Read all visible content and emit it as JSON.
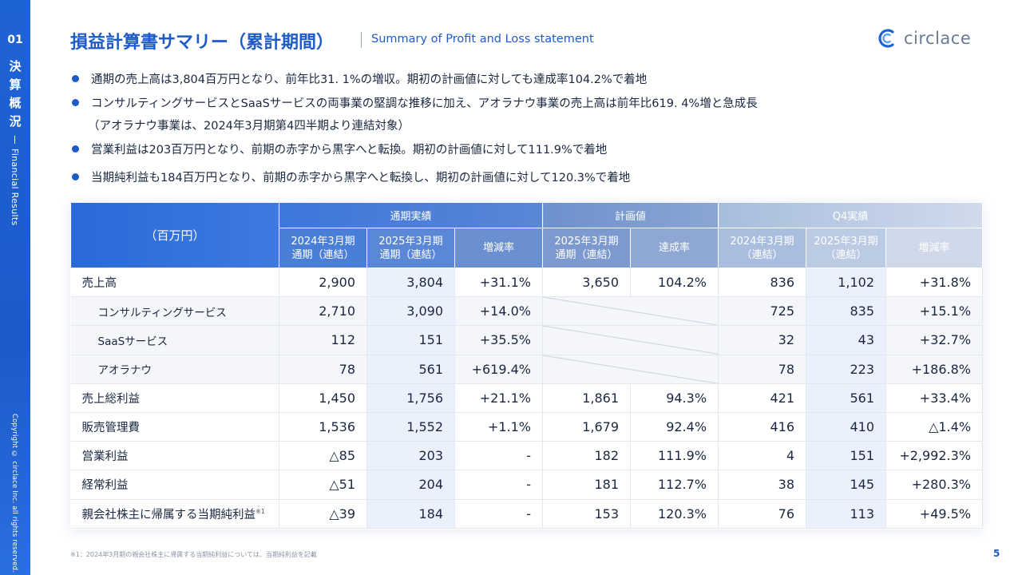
{
  "sidebar": {
    "section_number": "01",
    "section_jp": [
      "決",
      "算",
      "概",
      "況"
    ],
    "section_en": "Financial Results",
    "copyright": "Copyright © circlace Inc. all rights reserved."
  },
  "header": {
    "title": "損益計算書サマリー（累計期間）",
    "subtitle": "Summary of Profit and Loss statement",
    "logo_text": "circlace"
  },
  "bullets": [
    "通期の売上高は3,804百万円となり、前年比31. 1%の増収。期初の計画値に対しても達成率104.2%で着地",
    "コンサルティングサービスとSaaSサービスの両事業の堅調な推移に加え、アオラナウ事業の売上高は前年比619. 4%増と急成長",
    "（アオラナウ事業は、2024年3月期第4四半期より連結対象）",
    "営業利益は203百万円となり、前期の赤字から黒字へと転換。期初の計画値に対して111.9%で着地",
    "当期純利益も184百万円となり、前期の赤字から黒字へと転換し、期初の計画値に対して120.3%で着地"
  ],
  "table": {
    "corner": "（百万円）",
    "groups": [
      "通期実績",
      "計画値",
      "Q4実績"
    ],
    "columns": [
      [
        "2024年3月期",
        "通期（連結）"
      ],
      [
        "2025年3月期",
        "通期（連結）"
      ],
      [
        "増減率"
      ],
      [
        "2025年3月期",
        "通期（連結）"
      ],
      [
        "達成率"
      ],
      [
        "2024年3月期",
        "（連結）"
      ],
      [
        "2025年3月期",
        "（連結）"
      ],
      [
        "増減率"
      ]
    ],
    "rows": [
      {
        "label": "売上高",
        "sup": "",
        "values": [
          "2,900",
          "3,804",
          "+31.1%",
          "3,650",
          "104.2%",
          "836",
          "1,102",
          "+31.8%"
        ]
      },
      {
        "label": "コンサルティングサービス",
        "sup": "",
        "values": [
          "2,710",
          "3,090",
          "+14.0%",
          "",
          "",
          "725",
          "835",
          "+15.1%"
        ]
      },
      {
        "label": "SaaSサービス",
        "sup": "",
        "values": [
          "112",
          "151",
          "+35.5%",
          "",
          "",
          "32",
          "43",
          "+32.7%"
        ]
      },
      {
        "label": "アオラナウ",
        "sup": "",
        "values": [
          "78",
          "561",
          "+619.4%",
          "",
          "",
          "78",
          "223",
          "+186.8%"
        ]
      },
      {
        "label": "売上総利益",
        "sup": "",
        "values": [
          "1,450",
          "1,756",
          "+21.1%",
          "1,861",
          "94.3%",
          "421",
          "561",
          "+33.4%"
        ]
      },
      {
        "label": "販売管理費",
        "sup": "",
        "values": [
          "1,536",
          "1,552",
          "+1.1%",
          "1,679",
          "92.4%",
          "416",
          "410",
          "△1.4%"
        ]
      },
      {
        "label": "営業利益",
        "sup": "",
        "values": [
          "△85",
          "203",
          "-",
          "182",
          "111.9%",
          "4",
          "151",
          "+2,992.3%"
        ]
      },
      {
        "label": "経常利益",
        "sup": "",
        "values": [
          "△51",
          "204",
          "-",
          "181",
          "112.7%",
          "38",
          "145",
          "+280.3%"
        ]
      },
      {
        "label": "親会社株主に帰属する当期純利益",
        "sup": "※1",
        "values": [
          "△39",
          "184",
          "-",
          "153",
          "120.3%",
          "76",
          "113",
          "+49.5%"
        ]
      }
    ]
  },
  "footnote": "※1：2024年3月期の親会社株主に帰属する当期純利益については、当期純利益を記載",
  "page_number": "5"
}
